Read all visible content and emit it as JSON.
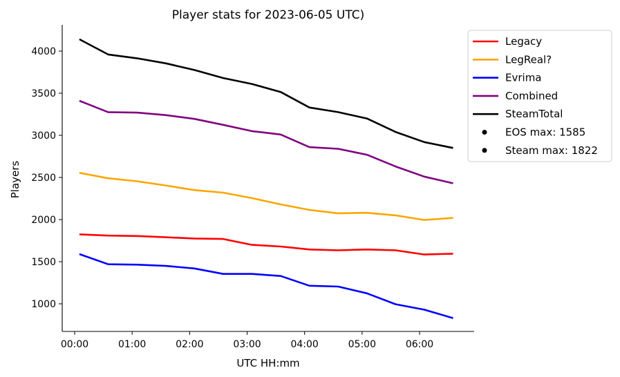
{
  "chart_data": {
    "type": "line",
    "title": "Player stats for 2023-06-05 UTC)",
    "xlabel": "UTC HH:mm",
    "ylabel": "Players",
    "x": [
      "00:05",
      "00:35",
      "01:05",
      "01:35",
      "02:05",
      "02:35",
      "03:05",
      "03:35",
      "04:05",
      "04:35",
      "05:05",
      "05:35",
      "06:05",
      "06:35"
    ],
    "x_ticks": [
      "00:00",
      "01:00",
      "02:00",
      "03:00",
      "04:00",
      "05:00",
      "06:00"
    ],
    "y_ticks": [
      1000,
      1500,
      2000,
      2500,
      3000,
      3500,
      4000
    ],
    "ylim": [
      680,
      4310
    ],
    "grid": false,
    "legend_position": "outside-right",
    "series": [
      {
        "name": "Legacy",
        "color": "#ff0000",
        "values": [
          1825,
          1810,
          1805,
          1790,
          1775,
          1770,
          1700,
          1680,
          1645,
          1635,
          1645,
          1635,
          1585,
          1595
        ]
      },
      {
        "name": "LegReal?",
        "color": "#ffa500",
        "values": [
          2555,
          2490,
          2455,
          2405,
          2350,
          2320,
          2255,
          2180,
          2115,
          2075,
          2080,
          2050,
          1995,
          2020
        ]
      },
      {
        "name": "Evrima",
        "color": "#0000ff",
        "values": [
          1590,
          1470,
          1465,
          1450,
          1420,
          1355,
          1355,
          1330,
          1215,
          1205,
          1125,
          995,
          930,
          830
        ]
      },
      {
        "name": "Combined",
        "color": "#800080",
        "values": [
          3410,
          3275,
          3270,
          3240,
          3195,
          3125,
          3050,
          3010,
          2860,
          2840,
          2770,
          2630,
          2510,
          2430
        ]
      },
      {
        "name": "SteamTotal",
        "color": "#000000",
        "values": [
          4140,
          3960,
          3915,
          3855,
          3775,
          3680,
          3610,
          3515,
          3330,
          3275,
          3200,
          3040,
          2920,
          2850
        ]
      }
    ],
    "legend_extra": [
      {
        "label": "EOS max: 1585"
      },
      {
        "label": "Steam max: 1822"
      }
    ]
  }
}
